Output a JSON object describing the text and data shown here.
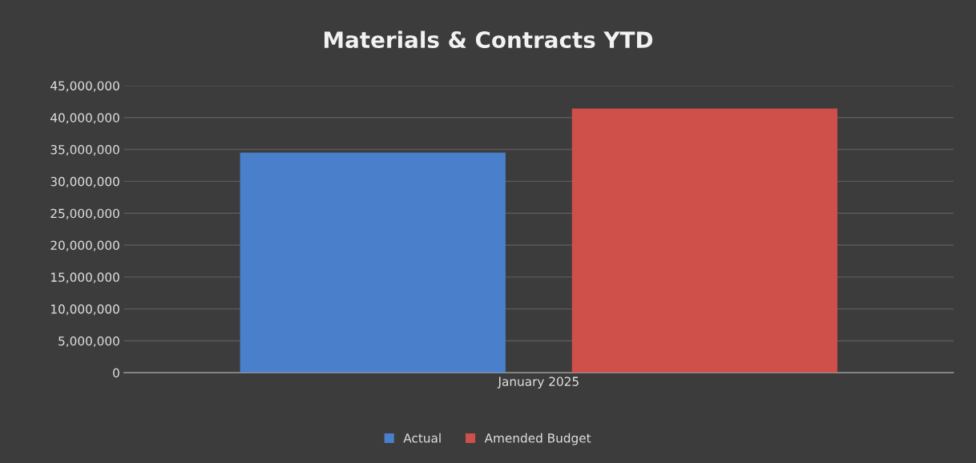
{
  "chart_data": {
    "type": "bar",
    "title": "Materials & Contracts YTD",
    "categories": [
      "January 2025"
    ],
    "series": [
      {
        "name": "Actual",
        "color": "#4a7fcc",
        "values": [
          34500000
        ]
      },
      {
        "name": "Amended Budget",
        "color": "#cf4f4a",
        "values": [
          41400000
        ]
      }
    ],
    "ylim": [
      0,
      45000000
    ],
    "yticks": [
      {
        "value": 0,
        "label": "0"
      },
      {
        "value": 5000000,
        "label": "5,000,000"
      },
      {
        "value": 10000000,
        "label": "10,000,000"
      },
      {
        "value": 15000000,
        "label": "15,000,000"
      },
      {
        "value": 20000000,
        "label": "20,000,000"
      },
      {
        "value": 25000000,
        "label": "25,000,000"
      },
      {
        "value": 30000000,
        "label": "30,000,000"
      },
      {
        "value": 35000000,
        "label": "35,000,000"
      },
      {
        "value": 40000000,
        "label": "40,000,000"
      },
      {
        "value": 45000000,
        "label": "45,000,000"
      }
    ],
    "grid": "y",
    "legend": "bottom"
  }
}
